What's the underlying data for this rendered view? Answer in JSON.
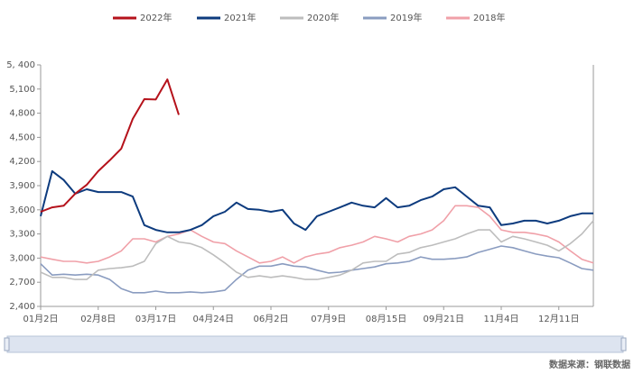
{
  "chart_data": {
    "type": "line",
    "categories": [
      "01月2日",
      null,
      null,
      null,
      null,
      "02月8日",
      null,
      null,
      null,
      null,
      "03月17日",
      null,
      null,
      null,
      null,
      "04月24日",
      null,
      null,
      null,
      null,
      "06月2日",
      null,
      null,
      null,
      null,
      "07月9日",
      null,
      null,
      null,
      null,
      "08月15日",
      null,
      null,
      null,
      null,
      "09月21日",
      null,
      null,
      null,
      null,
      "11月4日",
      null,
      null,
      null,
      null,
      "12月11日",
      null,
      null,
      null
    ],
    "series": [
      {
        "name": "2022年",
        "color": "#b5121b",
        "values": [
          3575,
          3630,
          3650,
          3800,
          3910,
          4080,
          4215,
          4360,
          4730,
          4975,
          4970,
          5220,
          4780,
          null,
          null,
          null,
          null,
          null,
          null,
          null,
          null,
          null,
          null,
          null,
          null,
          null,
          null,
          null,
          null,
          null,
          null,
          null,
          null,
          null,
          null,
          null,
          null,
          null,
          null,
          null,
          null,
          null,
          null,
          null,
          null,
          null,
          null,
          null,
          null
        ]
      },
      {
        "name": "2021年",
        "color": "#0d3b7e",
        "values": [
          3520,
          4080,
          3970,
          3800,
          3855,
          3820,
          3820,
          3820,
          3765,
          3410,
          3350,
          3320,
          3320,
          3350,
          3410,
          3520,
          3575,
          3690,
          3610,
          3600,
          3575,
          3600,
          3430,
          3350,
          3520,
          3575,
          3630,
          3690,
          3650,
          3630,
          3745,
          3630,
          3650,
          3720,
          3765,
          3855,
          3880,
          3765,
          3650,
          3630,
          3410,
          3430,
          3465,
          3465,
          3430,
          3465,
          3520,
          3555,
          3555
        ]
      },
      {
        "name": "2020年",
        "color": "#bdbdbd",
        "values": [
          2825,
          2760,
          2760,
          2735,
          2735,
          2850,
          2870,
          2880,
          2900,
          2960,
          3180,
          3270,
          3200,
          3180,
          3130,
          3040,
          2940,
          2825,
          2760,
          2780,
          2760,
          2780,
          2760,
          2735,
          2735,
          2760,
          2790,
          2850,
          2940,
          2960,
          2960,
          3050,
          3070,
          3130,
          3160,
          3200,
          3240,
          3300,
          3350,
          3350,
          3200,
          3270,
          3240,
          3200,
          3160,
          3090,
          3180,
          3300,
          3465
        ]
      },
      {
        "name": "2019年",
        "color": "#8a9cc0",
        "values": [
          2930,
          2790,
          2800,
          2790,
          2800,
          2790,
          2735,
          2620,
          2570,
          2570,
          2590,
          2570,
          2570,
          2580,
          2570,
          2580,
          2600,
          2735,
          2850,
          2900,
          2900,
          2930,
          2900,
          2890,
          2850,
          2815,
          2825,
          2850,
          2870,
          2890,
          2930,
          2940,
          2960,
          3015,
          2985,
          2985,
          2995,
          3015,
          3070,
          3110,
          3150,
          3130,
          3090,
          3050,
          3025,
          3005,
          2940,
          2870,
          2850
        ]
      },
      {
        "name": "2018年",
        "color": "#f0a0a8",
        "values": [
          3015,
          2985,
          2960,
          2960,
          2940,
          2960,
          3015,
          3090,
          3240,
          3240,
          3200,
          3270,
          3300,
          3350,
          3270,
          3200,
          3180,
          3090,
          3015,
          2940,
          2960,
          3015,
          2940,
          3015,
          3050,
          3070,
          3130,
          3160,
          3200,
          3270,
          3240,
          3200,
          3270,
          3300,
          3350,
          3465,
          3650,
          3650,
          3630,
          3520,
          3350,
          3320,
          3320,
          3300,
          3270,
          3200,
          3090,
          2985,
          2940
        ]
      }
    ],
    "ylim": [
      2400,
      5400
    ],
    "yticks": [
      {
        "value": 2400,
        "label": "2,400"
      },
      {
        "value": 2700,
        "label": "2,700"
      },
      {
        "value": 3000,
        "label": "3,000"
      },
      {
        "value": 3300,
        "label": "3,300"
      },
      {
        "value": 3600,
        "label": "3,600"
      },
      {
        "value": 3900,
        "label": "3,900"
      },
      {
        "value": 4200,
        "label": "4,200"
      },
      {
        "value": 4500,
        "label": "4,500"
      },
      {
        "value": 4800,
        "label": "4,800"
      },
      {
        "value": 5100,
        "label": "5,100"
      },
      {
        "value": 5400,
        "label": "5, 400"
      }
    ],
    "grid": false,
    "source": "数据来源：钢联数据"
  }
}
